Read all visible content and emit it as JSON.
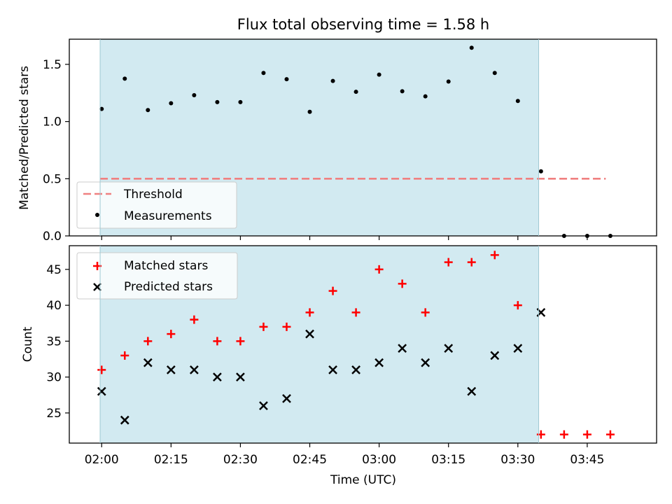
{
  "chart_data": [
    {
      "type": "scatter",
      "title": "Flux total observing time = 1.58 h",
      "ylabel": "Matched/Predicted stars",
      "ylim": [
        0,
        1.72
      ],
      "yticks": [
        0.0,
        0.5,
        1.0,
        1.5
      ],
      "ytick_labels": [
        "0.0",
        "0.5",
        "1.0",
        "1.5"
      ],
      "xlim": [
        "01:53",
        "04:00"
      ],
      "shaded_span": [
        "01:59:40",
        "03:34:30"
      ],
      "shade_color": "#add8e6",
      "legend_position": "lower-left",
      "threshold": {
        "name": "Threshold",
        "value": 0.5,
        "x_range": [
          "01:59:40",
          "03:49"
        ],
        "color": "#f08080",
        "style": "dashed"
      },
      "series": [
        {
          "name": "Measurements",
          "marker": "dot",
          "color": "#000000",
          "x": [
            "02:00",
            "02:05",
            "02:10",
            "02:15",
            "02:20",
            "02:25",
            "02:30",
            "02:35",
            "02:40",
            "02:45",
            "02:50",
            "02:55",
            "03:00",
            "03:05",
            "03:10",
            "03:15",
            "03:20",
            "03:25",
            "03:30",
            "03:35",
            "03:40",
            "03:45",
            "03:50"
          ],
          "values": [
            1.11,
            1.375,
            1.1,
            1.16,
            1.23,
            1.17,
            1.17,
            1.425,
            1.37,
            1.085,
            1.355,
            1.26,
            1.41,
            1.265,
            1.22,
            1.35,
            1.645,
            1.425,
            1.18,
            0.565,
            0,
            0,
            0
          ]
        }
      ]
    },
    {
      "type": "scatter",
      "xlabel": "Time (UTC)",
      "ylabel": "Count",
      "ylim": [
        20.8,
        48.3
      ],
      "yticks": [
        25,
        30,
        35,
        40,
        45
      ],
      "ytick_labels": [
        "25",
        "30",
        "35",
        "40",
        "45"
      ],
      "xticks": [
        "02:00",
        "02:15",
        "02:30",
        "02:45",
        "03:00",
        "03:15",
        "03:30",
        "03:45"
      ],
      "xlim": [
        "01:53",
        "04:00"
      ],
      "shaded_span": [
        "01:59:40",
        "03:34:30"
      ],
      "legend_position": "upper-left",
      "series": [
        {
          "name": "Matched stars",
          "marker": "plus",
          "color": "#ff0000",
          "x": [
            "02:00",
            "02:05",
            "02:10",
            "02:15",
            "02:20",
            "02:25",
            "02:30",
            "02:35",
            "02:40",
            "02:45",
            "02:50",
            "02:55",
            "03:00",
            "03:05",
            "03:10",
            "03:15",
            "03:20",
            "03:25",
            "03:30",
            "03:35",
            "03:40",
            "03:45",
            "03:50"
          ],
          "values": [
            31,
            33,
            35,
            36,
            38,
            35,
            35,
            37,
            37,
            39,
            42,
            39,
            45,
            43,
            39,
            46,
            46,
            47,
            40,
            22,
            22,
            22,
            22
          ]
        },
        {
          "name": "Predicted stars",
          "marker": "x",
          "color": "#000000",
          "x": [
            "02:00",
            "02:05",
            "02:10",
            "02:15",
            "02:20",
            "02:25",
            "02:30",
            "02:35",
            "02:40",
            "02:45",
            "02:50",
            "02:55",
            "03:00",
            "03:05",
            "03:10",
            "03:15",
            "03:20",
            "03:25",
            "03:30",
            "03:35"
          ],
          "values": [
            28,
            24,
            32,
            31,
            31,
            30,
            30,
            26,
            27,
            36,
            31,
            31,
            32,
            34,
            32,
            34,
            28,
            33,
            34,
            39
          ]
        }
      ]
    }
  ]
}
